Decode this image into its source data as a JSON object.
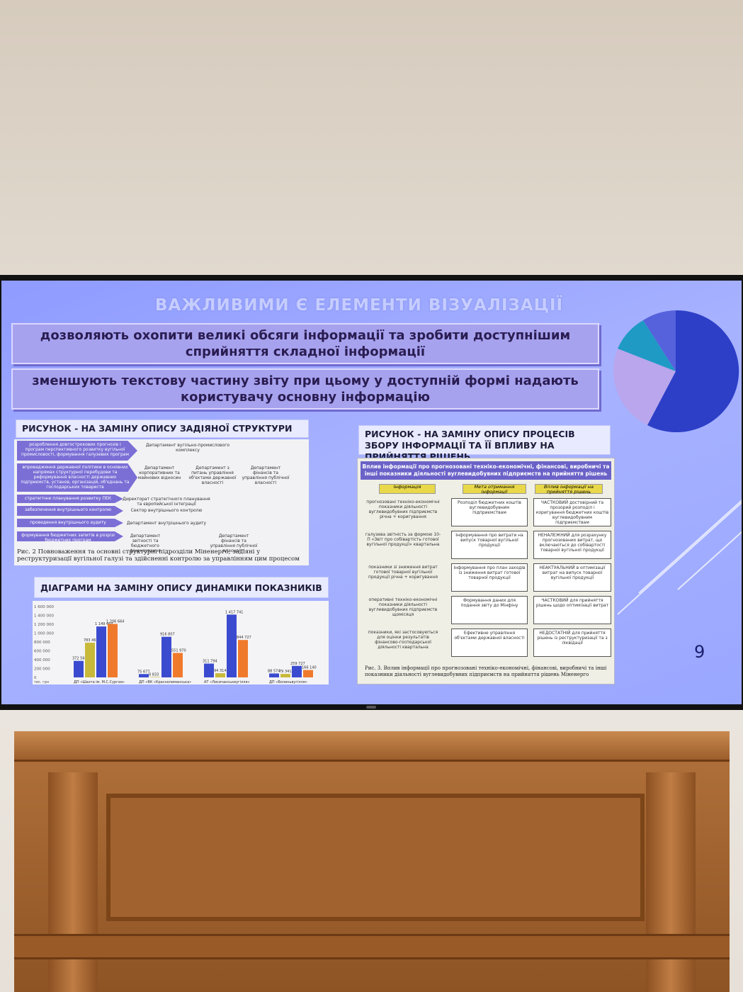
{
  "slide": {
    "title": "ВАЖЛИВИМИ Є ЕЛЕМЕНТИ ВІЗУАЛІЗАЦІЇ",
    "banner1": "дозволяють охопити великі обсяги інформації та зробити доступнішим сприйняття складної інформації",
    "banner2": "зменшують текстову частину звіту при цьому у доступній формі надають користувачу основну інформацію",
    "page_number": "9",
    "panel1_title": "РИСУНОК  -  НА ЗАМІНУ ОПИСУ ЗАДІЯНОЇ СТРУКТУРИ",
    "panel2_title": "ДІАГРАМИ НА ЗАМІНУ ОПИСУ ДИНАМІКИ ПОКАЗНИКІВ",
    "panel3_title": "РИСУНОК - НА ЗАМІНУ ОПИСУ ПРОЦЕСІВ ЗБОРУ ІНФОРМАЦІЇ ТА ЇЇ ВПЛИВУ НА ПРИЙНЯТТЯ РІШЕНЬ",
    "pie_colors": [
      "#2d3fc7",
      "#b9a6ec",
      "#1f9ac5",
      "#5662dc"
    ]
  },
  "org_chart": {
    "rows": [
      {
        "label": "розроблення довгострокових прогнозів і програм перспективного розвитку вугільної промисловості, формування галузевих програм",
        "depts": [
          "Департамент вугільно-промислового комплексу"
        ]
      },
      {
        "label": "впровадження державної політики в основних напрямах структурної перебудови та реформування власності державних підприємств, установ, організацій, об'єднань та господарських товариств",
        "depts": [
          "Департамент корпоративних та майнових відносин",
          "Департамент з питань управління об'єктами державної власності",
          "Департамент фінансів та управління публічної власності"
        ]
      },
      {
        "label": "стратегічне планування розвитку ПЕК",
        "depts": [
          "Директорат стратегічного планування та європейської інтеграції"
        ]
      },
      {
        "label": "забезпечення внутрішнього контролю",
        "depts": [
          "Сектор внутрішнього контролю"
        ]
      },
      {
        "label": "проведення внутрішнього аудиту",
        "depts": [
          "Департамент внутрішнього аудиту"
        ]
      },
      {
        "label": "формування бюджетних запитів в розрізі бюджетних програм",
        "depts": [
          "Департамент звітності та бюджетного фінансування",
          "Департамент фінансів та управління публічної власності"
        ]
      }
    ],
    "caption": "Рис. 2 Повноваження та основні структурні підрозділи Міненерго, задіяні у реструктуризації вугільної галузі та здійсненні контролю за управлінням цим процесом"
  },
  "chart_data": {
    "type": "bar",
    "ylabel": "тис. грн",
    "ylim": [
      0,
      1600000
    ],
    "yticks": [
      "1 600 000",
      "1 400 000",
      "1 200 000",
      "1 000 000",
      "800 000",
      "600 000",
      "400 000",
      "200 000",
      "0"
    ],
    "categories": [
      "ДП «Шахта ім. М.С.Сургая»",
      "ДП «ВК «Краснолиманська»",
      "АТ «Лисичанськвугілля»",
      "ДП «Волиньвугілля»"
    ],
    "series": [
      {
        "color": "#3b4bd0",
        "values": [
          372566,
          75677,
          311794,
          88574
        ]
      },
      {
        "color": "#c8b93a",
        "values": [
          783465,
          8833,
          94314,
          79341
        ]
      },
      {
        "color": "#3b4bd0",
        "values": [
          1149464,
          916807,
          1417741,
          259727
        ]
      },
      {
        "color": "#f07a2c",
        "values": [
          1206664,
          551970,
          844727,
          166140
        ]
      }
    ],
    "labels": [
      [
        "372 566",
        "783 465",
        "1 149 464",
        "1 206 664"
      ],
      [
        "75 677",
        "8 833",
        "916 807",
        "551 970"
      ],
      [
        "311 794",
        "94 314",
        "1 417 741",
        "844 727"
      ],
      [
        "88 574",
        "79 341",
        "259 727",
        "166 140"
      ]
    ]
  },
  "flow": {
    "head": "Вплив інформації про прогнозовані техніко-економічні, фінансові, виробничі та інші показники діяльності вуглевидобувних підприємств на прийняття рішень",
    "headers": [
      "Інформація",
      "Мета отримання інформації",
      "Вплив інформації на прийняття рішень"
    ],
    "rows": [
      {
        "info": "прогнозовані техніко-економічні показники діяльності вуглевидобувних підприємств річна + коригування",
        "goal": "Розподіл бюджетних коштів вуглевидобувним підприємствам",
        "impact": "ЧАСТКОВИЙ достовірний та прозорий розподіл і коригування бюджетних коштів вуглевидобувним підприємствам"
      },
      {
        "info": "галузева звітність за формою 10-П «Звіт про собівартість готової вугільної продукції» квартальна",
        "goal": "Інформування про витрати на випуск товарної вугільної продукції",
        "impact": "НЕНАЛЕЖНИЙ для розрахунку прогнозованих витрат, що включаються до собівартості товарної вугільної продукції"
      },
      {
        "info": "показники зі зниження витрат готової товарної вугільної продукції річна + коригування",
        "goal": "Інформування про план заходів із зниження витрат готової товарної продукції",
        "impact": "НЕАКТУАЛЬНИЙ в оптимізації витрат на випуск товарної вугільної продукції"
      },
      {
        "info": "оперативні техніко-економічні показники діяльності вуглевидобувних підприємств щомісяця",
        "goal": "Формування даних для подання звіту до Мінфіну",
        "impact": "ЧАСТКОВИЙ для прийняття рішень щодо оптимізації витрат"
      },
      {
        "info": "показники, які застосовуються для оцінки результатів фінансово-господарської діяльності квартальна",
        "goal": "Ефективне управління об'єктами державної власності",
        "impact": "НЕДОСТАТНІЙ для прийняття рішень із реструктуризації та з ліквідації"
      }
    ],
    "caption": "Рис. 3. Вплив інформації про прогнозовані техніко-економічні, фінансові, виробничі та інші показники діяльності вуглевидобувних підприємств на прийняття рішень Міненерго"
  }
}
